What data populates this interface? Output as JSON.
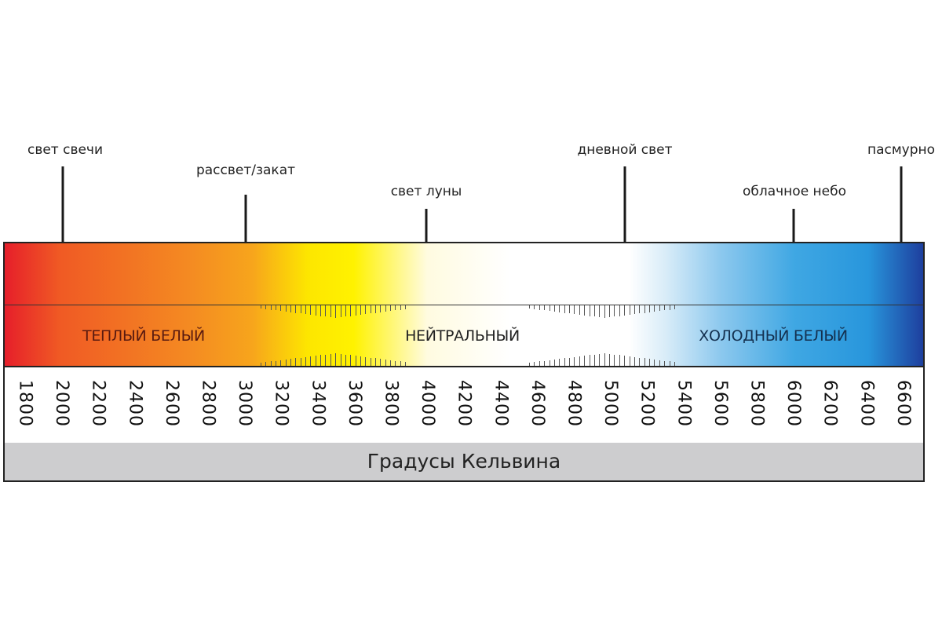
{
  "markers": [
    {
      "label": "свет свечи",
      "kelvin": 2000
    },
    {
      "label": "рассвет/закат",
      "kelvin": 3000
    },
    {
      "label": "свет луны",
      "kelvin": 4000
    },
    {
      "label": "дневной свет",
      "kelvin": 5100
    },
    {
      "label": "облачное небо",
      "kelvin": 6000
    },
    {
      "label": "пасмурно",
      "kelvin": 6600
    }
  ],
  "zones": [
    "ТЕПЛЫЙ БЕЛЫЙ",
    "НЕЙТРАЛЬНЫЙ",
    "ХОЛОДНЫЙ БЕЛЫЙ"
  ],
  "scale_ticks": [
    "1800",
    "2000",
    "2200",
    "2400",
    "2600",
    "2800",
    "3000",
    "3200",
    "3400",
    "3600",
    "3800",
    "4000",
    "4200",
    "4400",
    "4600",
    "4800",
    "5000",
    "5200",
    "5400",
    "5600",
    "5800",
    "6000",
    "6200",
    "6400",
    "6600"
  ],
  "footer": "Градусы Кельвина",
  "colors": {
    "warm": "#e61f2a",
    "yellow": "#fff200",
    "neutral": "#ffffff",
    "cool": "#2896dc",
    "deep_blue": "#1e3f9e"
  }
}
